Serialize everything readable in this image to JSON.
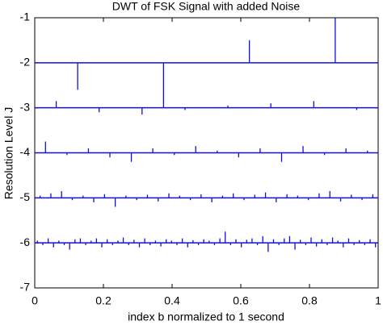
{
  "chart_data": {
    "type": "stem",
    "title": "DWT of FSK Signal with added Noise",
    "x_label": "index b normalized to 1 second",
    "y_label": "Resolution Level J",
    "color": "#1010e0",
    "xlim": [
      0,
      1
    ],
    "xticks": [
      0,
      0.2,
      0.4,
      0.6,
      0.8,
      1
    ],
    "ylim": [
      -7,
      -1
    ],
    "yticks": [
      -1,
      -2,
      -3,
      -4,
      -5,
      -6,
      -7
    ],
    "series": [
      {
        "level": -2,
        "x": [
          0.125,
          0.375,
          0.625,
          0.875
        ],
        "values": [
          -2.6,
          -3.0,
          -1.5,
          -1.0
        ]
      },
      {
        "level": -3,
        "x": [
          0.0625,
          0.1875,
          0.3125,
          0.4375,
          0.5625,
          0.6875,
          0.8125,
          0.9375
        ],
        "values": [
          -2.85,
          -3.1,
          -3.15,
          -3.05,
          -2.95,
          -2.9,
          -2.85,
          -3.05
        ]
      },
      {
        "level": -4,
        "x": [
          0.0313,
          0.0938,
          0.1563,
          0.2188,
          0.2813,
          0.3438,
          0.4063,
          0.4688,
          0.5313,
          0.5938,
          0.6563,
          0.7188,
          0.7813,
          0.8438,
          0.9063,
          0.9688
        ],
        "values": [
          -3.75,
          -4.05,
          -3.9,
          -4.1,
          -4.2,
          -3.9,
          -4.05,
          -3.85,
          -3.95,
          -4.1,
          -3.9,
          -4.2,
          -3.85,
          -4.05,
          -3.9,
          -3.95
        ]
      },
      {
        "level": -5,
        "x": [
          0.0156,
          0.0469,
          0.0781,
          0.1094,
          0.1406,
          0.1719,
          0.2031,
          0.2344,
          0.2656,
          0.2969,
          0.3281,
          0.3594,
          0.3906,
          0.4219,
          0.4531,
          0.4844,
          0.5156,
          0.5469,
          0.5781,
          0.6094,
          0.6406,
          0.6719,
          0.7031,
          0.7344,
          0.7656,
          0.7969,
          0.8281,
          0.8594,
          0.8906,
          0.9219,
          0.9531,
          0.9844
        ],
        "values": [
          -4.95,
          -4.9,
          -4.85,
          -5.05,
          -4.95,
          -5.1,
          -4.92,
          -5.2,
          -4.95,
          -5.05,
          -4.93,
          -5.08,
          -4.9,
          -4.95,
          -5.05,
          -4.92,
          -5.1,
          -4.95,
          -4.9,
          -5.05,
          -4.93,
          -4.88,
          -5.1,
          -4.92,
          -4.95,
          -5.05,
          -4.9,
          -4.85,
          -5.08,
          -4.93,
          -5.05,
          -4.92
        ]
      },
      {
        "level": -6,
        "x": [
          0.0078,
          0.0234,
          0.0391,
          0.0547,
          0.0703,
          0.0859,
          0.1016,
          0.1172,
          0.1328,
          0.1484,
          0.1641,
          0.1797,
          0.1953,
          0.2109,
          0.2266,
          0.2422,
          0.2578,
          0.2734,
          0.2891,
          0.3047,
          0.3203,
          0.3359,
          0.3516,
          0.3672,
          0.3828,
          0.3984,
          0.4141,
          0.4297,
          0.4453,
          0.4609,
          0.4766,
          0.4922,
          0.5078,
          0.5234,
          0.5391,
          0.5547,
          0.5703,
          0.5859,
          0.6016,
          0.6172,
          0.6328,
          0.6484,
          0.6641,
          0.6797,
          0.6953,
          0.7109,
          0.7266,
          0.7422,
          0.7578,
          0.7734,
          0.7891,
          0.8047,
          0.8203,
          0.8359,
          0.8516,
          0.8672,
          0.8828,
          0.8984,
          0.9141,
          0.9297,
          0.9453,
          0.9609,
          0.9766,
          0.9922
        ],
        "values": [
          -5.95,
          -6.05,
          -5.9,
          -6.1,
          -5.95,
          -6.05,
          -6.15,
          -5.92,
          -5.9,
          -6.05,
          -5.95,
          -5.9,
          -6.1,
          -5.92,
          -6.05,
          -5.95,
          -5.88,
          -6.05,
          -5.93,
          -6.1,
          -5.9,
          -6.05,
          -5.95,
          -6.08,
          -5.92,
          -5.95,
          -6.05,
          -5.9,
          -6.1,
          -5.94,
          -6.05,
          -5.92,
          -5.95,
          -6.05,
          -5.9,
          -5.75,
          -6.05,
          -5.92,
          -6.1,
          -5.93,
          -5.9,
          -6.05,
          -5.85,
          -6.2,
          -5.92,
          -6.05,
          -5.9,
          -5.85,
          -6.15,
          -5.93,
          -6.05,
          -5.88,
          -6.08,
          -5.92,
          -6.05,
          -5.88,
          -5.95,
          -6.1,
          -5.9,
          -6.05,
          -5.94,
          -6.05,
          -5.92,
          -6.1
        ]
      }
    ]
  }
}
